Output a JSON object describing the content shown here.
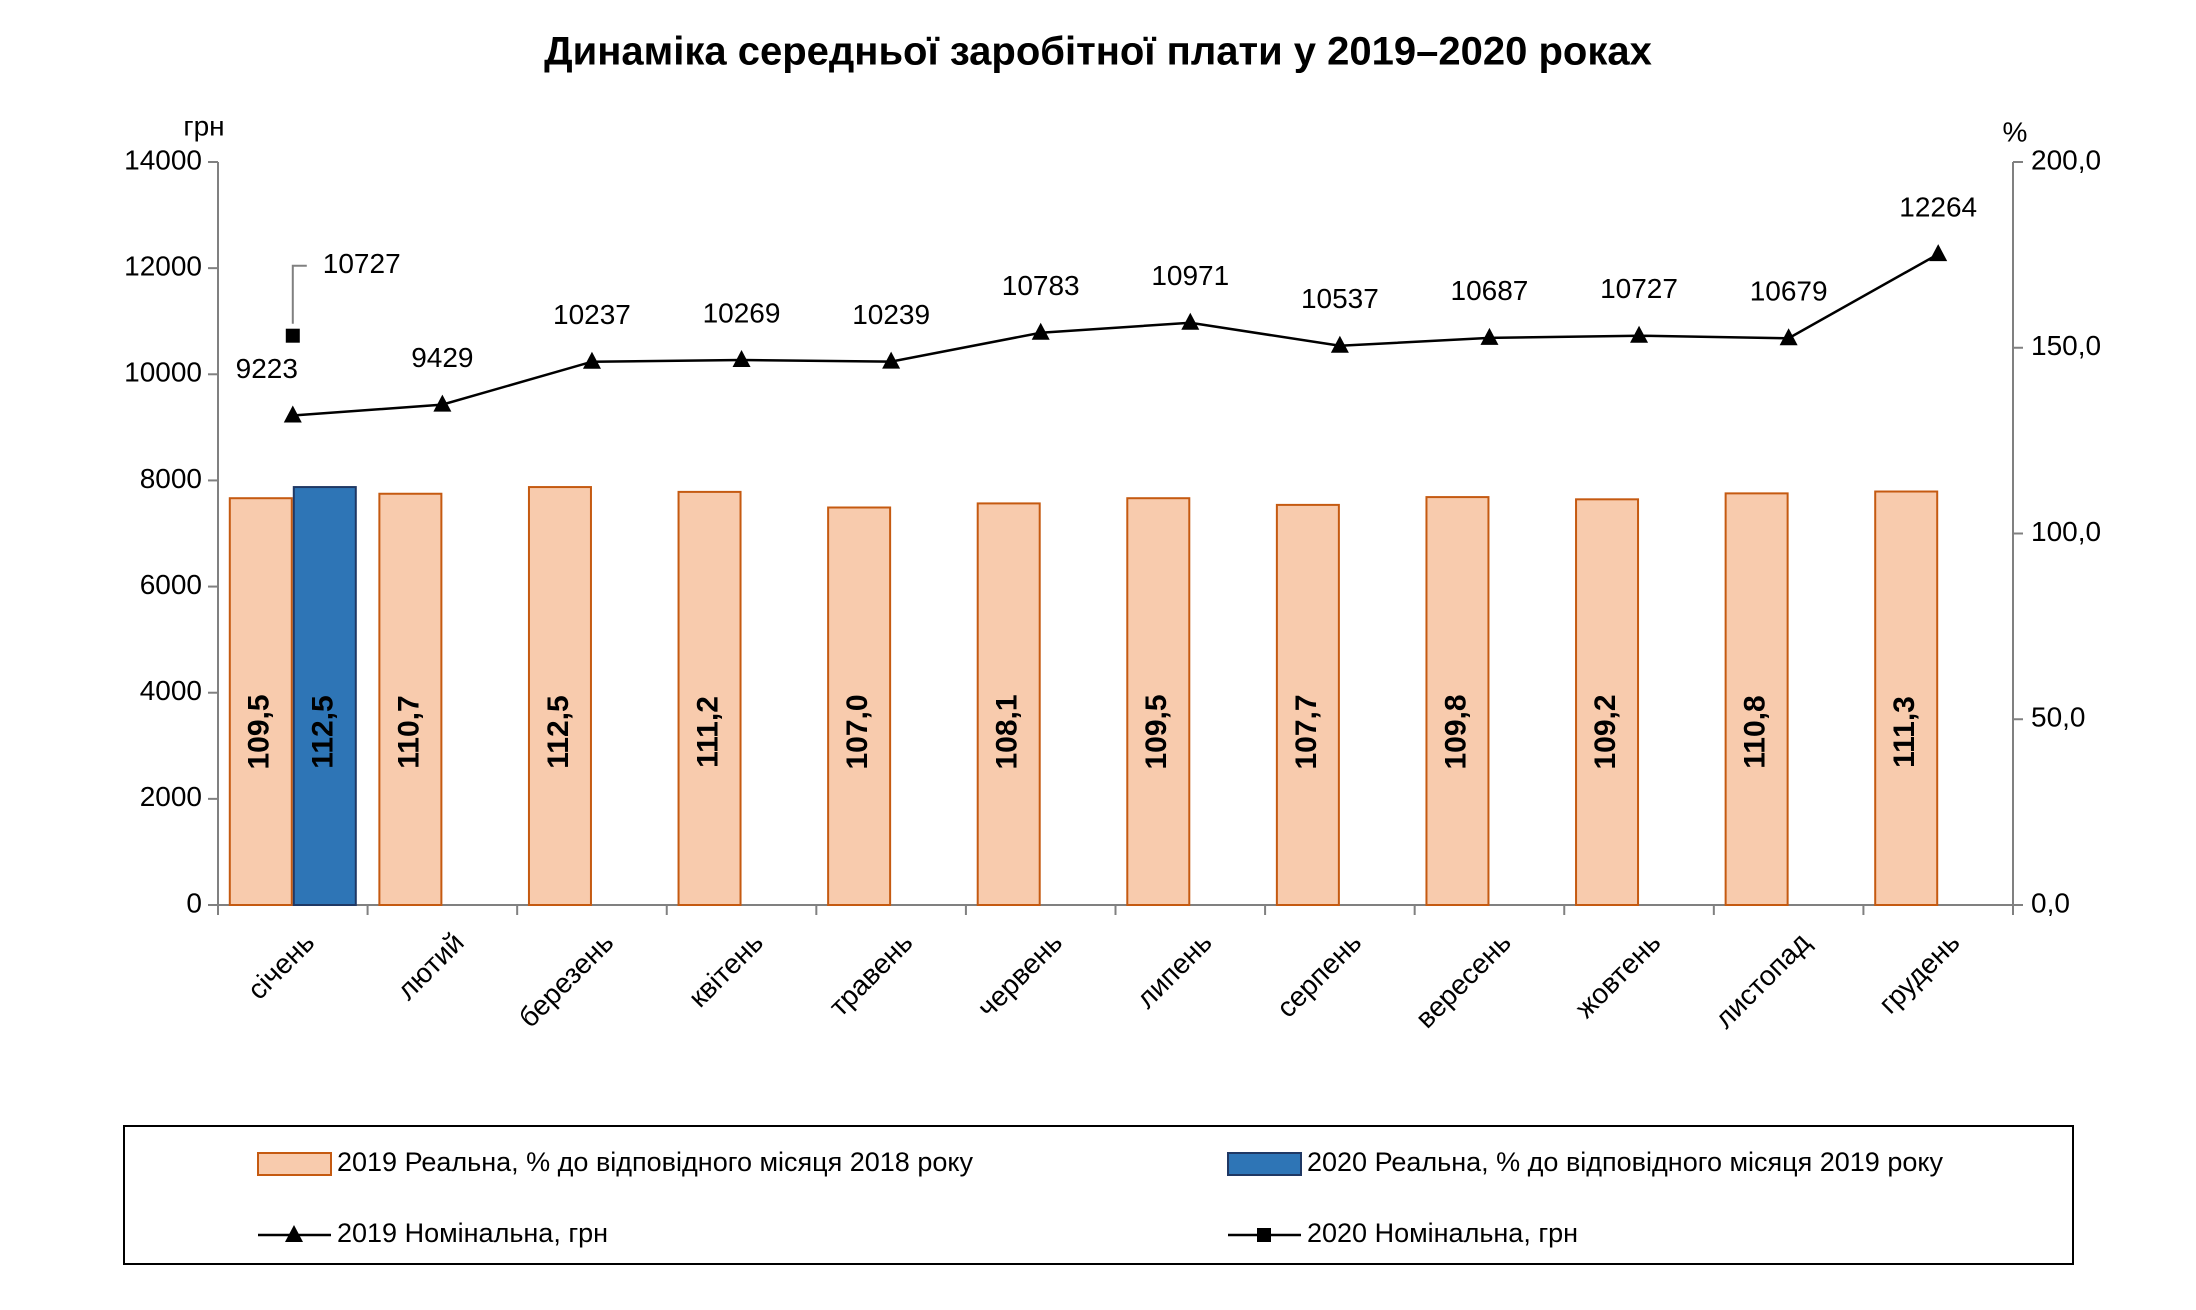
{
  "chart_data": {
    "type": "bar",
    "title": "Динаміка середньої заробітної плати у 2019–2020 роках",
    "y_label": "грн",
    "y2_label": "%",
    "categories": [
      "січень",
      "лютий",
      "березень",
      "квітень",
      "травень",
      "червень",
      "липень",
      "серпень",
      "вересень",
      "жовтень",
      "листопад",
      "грудень"
    ],
    "ylim": [
      0,
      14000
    ],
    "yticks": [
      0,
      2000,
      4000,
      6000,
      8000,
      10000,
      12000,
      14000
    ],
    "y2lim": [
      0,
      200
    ],
    "y2ticks": [
      {
        "value": 0,
        "label": "0,0"
      },
      {
        "value": 50,
        "label": "50,0"
      },
      {
        "value": 100,
        "label": "100,0"
      },
      {
        "value": 150,
        "label": "150,0"
      },
      {
        "value": 200,
        "label": "200,0"
      }
    ],
    "series": [
      {
        "name": "2019 Реальна, % до відповідного місяця 2018 року",
        "type": "bar",
        "axis": "y2",
        "color": "#f8cbad",
        "edge": "#c55a11",
        "values": [
          109.5,
          110.7,
          112.5,
          111.2,
          107.0,
          108.1,
          109.5,
          107.7,
          109.8,
          109.2,
          110.8,
          111.3
        ],
        "value_labels": [
          "109,5",
          "110,7",
          "112,5",
          "111,2",
          "107,0",
          "108,1",
          "109,5",
          "107,7",
          "109,8",
          "109,2",
          "110,8",
          "111,3"
        ]
      },
      {
        "name": "2020 Реальна, % до відповідного місяця 2019 року",
        "type": "bar",
        "axis": "y2",
        "color": "#2e75b6",
        "edge": "#1f3864",
        "values": [
          112.5,
          null,
          null,
          null,
          null,
          null,
          null,
          null,
          null,
          null,
          null,
          null
        ],
        "value_labels": [
          "112,5",
          null,
          null,
          null,
          null,
          null,
          null,
          null,
          null,
          null,
          null,
          null
        ]
      },
      {
        "name": "2019 Номінальна, грн",
        "type": "line",
        "marker": "triangle",
        "color": "#000000",
        "values": [
          9223,
          9429,
          10237,
          10269,
          10239,
          10783,
          10971,
          10537,
          10687,
          10727,
          10679,
          12264
        ]
      },
      {
        "name": "2020 Номінальна, грн",
        "type": "line",
        "marker": "square",
        "color": "#000000",
        "values": [
          10727,
          null,
          null,
          null,
          null,
          null,
          null,
          null,
          null,
          null,
          null,
          null
        ]
      }
    ]
  }
}
